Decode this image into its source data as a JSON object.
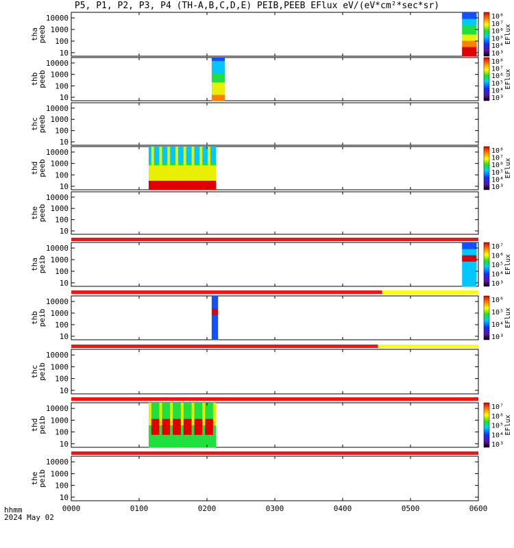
{
  "title": "P5, P1, P2, P3, P4 (TH-A,B,C,D,E) PEIB,PEEB EFlux eV/(eV*cm²*sec*sr)",
  "footer": {
    "line1": "hhmm",
    "line2": "2024 May 02"
  },
  "chart_data": {
    "type": "heatmap",
    "x_axis": {
      "ticks": [
        "0000",
        "0100",
        "0200",
        "0300",
        "0400",
        "0500",
        "0600"
      ],
      "range_hours": [
        0,
        6
      ]
    },
    "y_axis": {
      "scale": "log",
      "ticks": [
        "10",
        "100",
        "1000",
        "10000"
      ],
      "range_eV": [
        5,
        30000
      ]
    },
    "colorbar_label": "EFlux",
    "colors": {
      "red_bar": "#ff1010",
      "yellow_bar": "#ffff00",
      "high": "#e00000",
      "mid": "#20e020",
      "low": "#3020c0"
    },
    "panels": [
      {
        "name": "tha peeb",
        "probe": "tha",
        "species": "peeb",
        "data_spans_hours": [
          [
            5.76,
            5.97
          ]
        ],
        "profile": "electron_high",
        "colorbar": [
          "10⁸",
          "10⁷",
          "10⁶",
          "10⁵",
          "10⁴",
          "10³"
        ]
      },
      {
        "name": "thb peeb",
        "probe": "thb",
        "species": "peeb",
        "data_spans_hours": [
          [
            2.07,
            2.26
          ]
        ],
        "profile": "electron_mid",
        "colorbar": [
          "10⁸",
          "10⁷",
          "10⁶",
          "10⁵",
          "10⁴",
          "10³"
        ]
      },
      {
        "name": "thc peeb",
        "probe": "thc",
        "species": "peeb",
        "data_spans_hours": []
      },
      {
        "name": "thd peeb",
        "probe": "thd",
        "species": "peeb",
        "data_spans_hours": [
          [
            1.14,
            2.13
          ]
        ],
        "profile": "electron_bands",
        "colorbar": [
          "10⁸",
          "10⁷",
          "10⁶",
          "10⁵",
          "10⁴",
          "10³"
        ]
      },
      {
        "name": "the peeb",
        "probe": "the",
        "species": "peeb",
        "data_spans_hours": [],
        "mode_bar": {
          "red_until_hours": 6.0
        }
      },
      {
        "name": "tha peib",
        "probe": "tha",
        "species": "peib",
        "data_spans_hours": [
          [
            5.76,
            5.97
          ]
        ],
        "profile": "ion_high",
        "colorbar": [
          "10⁷",
          "10⁶",
          "10⁵",
          "10⁴",
          "10³"
        ],
        "mode_bar": {
          "red_until_hours": 4.58
        }
      },
      {
        "name": "thb peib",
        "probe": "thb",
        "species": "peib",
        "data_spans_hours": [
          [
            2.07,
            2.16
          ]
        ],
        "profile": "ion_mid",
        "colorbar": [
          "10⁶",
          "10⁵",
          "10⁴",
          "10³"
        ],
        "mode_bar": {
          "red_until_hours": 4.52
        }
      },
      {
        "name": "thc peib",
        "probe": "thc",
        "species": "peib",
        "data_spans_hours": [],
        "mode_bar": {
          "red_until_hours": 6.0
        }
      },
      {
        "name": "thd peib",
        "probe": "thd",
        "species": "peib",
        "data_spans_hours": [
          [
            1.14,
            2.13
          ]
        ],
        "profile": "ion_bands",
        "colorbar": [
          "10⁷",
          "10⁶",
          "10⁵",
          "10⁴",
          "10³"
        ],
        "mode_bar": {
          "red_until_hours": 6.0
        }
      },
      {
        "name": "the peib",
        "probe": "the",
        "species": "peib",
        "data_spans_hours": []
      }
    ]
  }
}
